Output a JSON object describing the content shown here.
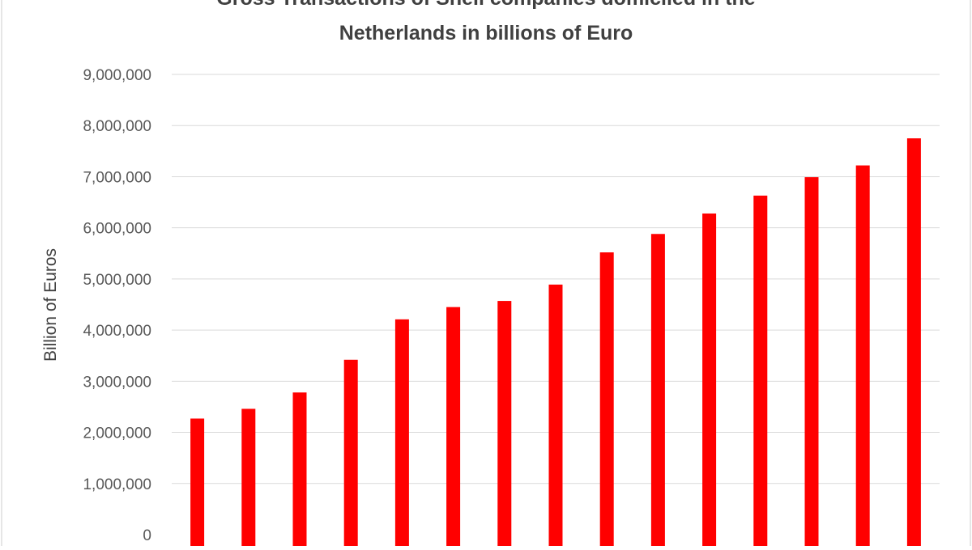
{
  "chart_data": {
    "type": "bar",
    "title_lines": [
      "Gross Transactions of Shell companies domiciled in the",
      "Netherlands in billions of Euro"
    ],
    "ylabel": "Billion of Euros",
    "xlabel": "",
    "ylim": [
      0,
      9000000
    ],
    "yticks": [
      0,
      1000000,
      2000000,
      3000000,
      4000000,
      5000000,
      6000000,
      7000000,
      8000000,
      9000000
    ],
    "ytick_labels": [
      "0",
      "1,000,000",
      "2,000,000",
      "3,000,000",
      "4,000,000",
      "5,000,000",
      "6,000,000",
      "7,000,000",
      "8,000,000",
      "9,000,000"
    ],
    "grid": true,
    "bar_color": "#ff0000",
    "values": [
      2270000,
      2460000,
      2780000,
      3420000,
      4210000,
      4450000,
      4570000,
      4890000,
      5520000,
      5880000,
      6280000,
      6630000,
      6990000,
      7220000,
      7750000
    ]
  }
}
